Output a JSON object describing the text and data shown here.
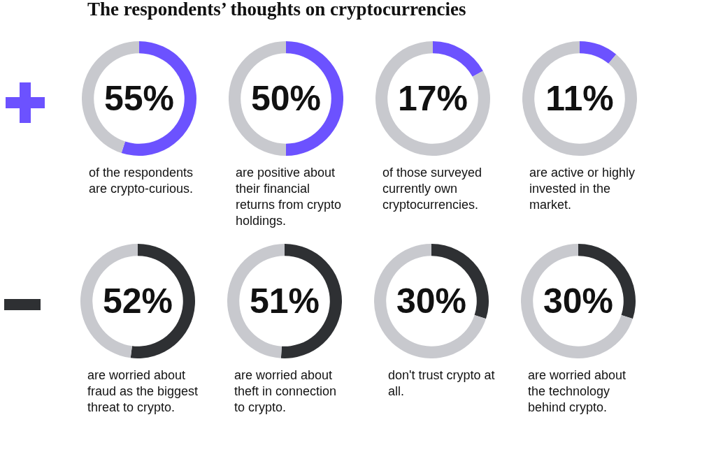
{
  "chart_data": [
    {
      "type": "donut",
      "title": "The respondents’ thoughts on cryptocurrencies",
      "categories": [
        null,
        null
      ],
      "values": [
        55,
        45
      ],
      "colors": [
        "#6c52ff",
        "#c8c9ce"
      ],
      "annotations": [
        "55%",
        "of the respondents are crypto-curious."
      ]
    },
    {
      "type": "donut",
      "categories": [
        null,
        null
      ],
      "values": [
        50,
        50
      ],
      "colors": [
        "#6c52ff",
        "#c8c9ce"
      ],
      "annotations": [
        "50%",
        "are positive about their financial returns from crypto holdings."
      ]
    },
    {
      "type": "donut",
      "categories": [
        null,
        null
      ],
      "values": [
        17,
        83
      ],
      "colors": [
        "#6c52ff",
        "#c8c9ce"
      ],
      "annotations": [
        "17%",
        "of those surveyed currently own cryptocurrencies."
      ]
    },
    {
      "type": "donut",
      "categories": [
        null,
        null
      ],
      "values": [
        11,
        89
      ],
      "colors": [
        "#6c52ff",
        "#c8c9ce"
      ],
      "annotations": [
        "11%",
        "are active or highly invested in the market."
      ]
    },
    {
      "type": "donut",
      "categories": [
        null,
        null
      ],
      "values": [
        52,
        48
      ],
      "colors": [
        "#2e3033",
        "#c8c9ce"
      ],
      "annotations": [
        "52%",
        "are worried about fraud as the biggest threat to crypto."
      ]
    },
    {
      "type": "donut",
      "categories": [
        null,
        null
      ],
      "values": [
        51,
        49
      ],
      "colors": [
        "#2e3033",
        "#c8c9ce"
      ],
      "annotations": [
        "51%",
        "are worried about theft in connection to crypto."
      ]
    },
    {
      "type": "donut",
      "categories": [
        null,
        null
      ],
      "values": [
        30,
        70
      ],
      "colors": [
        "#2e3033",
        "#c8c9ce"
      ],
      "annotations": [
        "30%",
        "don't trust crypto at all."
      ]
    },
    {
      "type": "donut",
      "categories": [
        null,
        null
      ],
      "values": [
        30,
        70
      ],
      "colors": [
        "#2e3033",
        "#c8c9ce"
      ],
      "annotations": [
        "30%",
        "are worried about the technology behind crypto."
      ]
    }
  ]
}
